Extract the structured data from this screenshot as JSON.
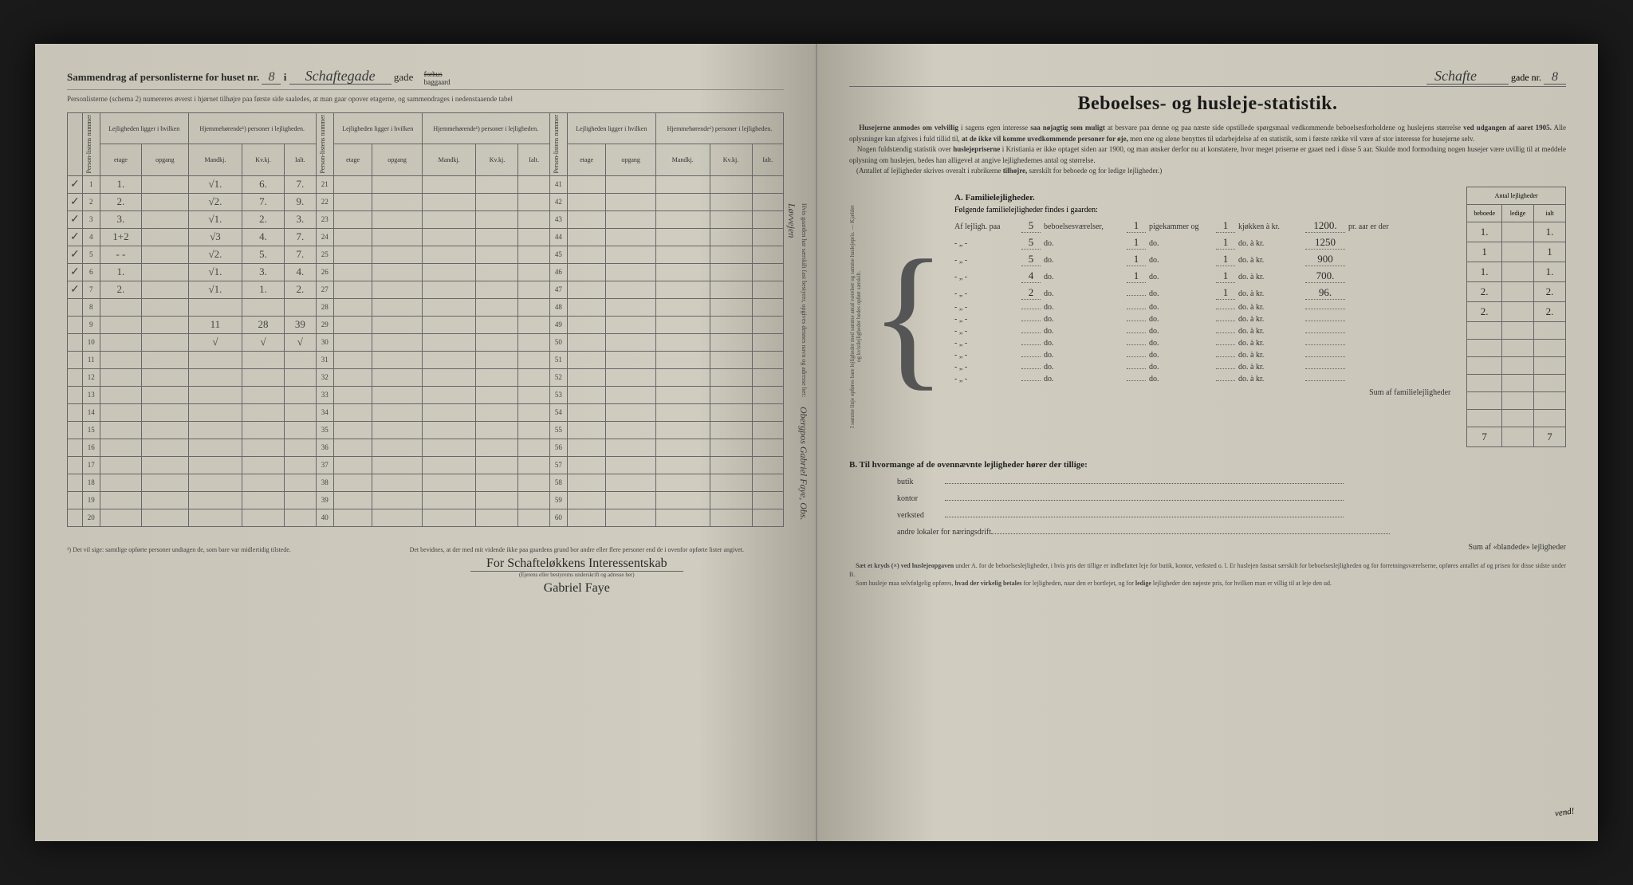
{
  "leftPage": {
    "titlePrefix": "Sammendrag af personlisterne for huset nr.",
    "houseNumber": "8",
    "titleMid": "i",
    "streetName": "Schaftegade",
    "titleSuffix": "gade",
    "forhus": "forhus",
    "baggaard": "baggaard",
    "subtitle": "Personlisterne (schema 2) numereres øverst i hjørnet tilhøjre paa første side saaledes, at man gaar opover etagerne, og sammendrages i nedenstaaende tabel",
    "headers": {
      "personlistens": "Person-listens nummer",
      "lejligheden": "Lejligheden ligger i hvilken",
      "hjemmehorende": "Hjemmehørende¹) personer i lejligheden.",
      "etage": "etage",
      "opgang": "opgang",
      "mandkj": "Mandkj.",
      "kvkj": "Kv.kj.",
      "ialt": "Ialt."
    },
    "rows": [
      {
        "check": "✓",
        "n": "1",
        "etage": "1.",
        "opg": "",
        "m": "√1.",
        "k": "6.",
        "i": "7.",
        "n2": "21",
        "n3": "41"
      },
      {
        "check": "✓",
        "n": "2",
        "etage": "2.",
        "opg": "",
        "m": "√2.",
        "k": "7.",
        "i": "9.",
        "n2": "22",
        "n3": "42"
      },
      {
        "check": "✓",
        "n": "3",
        "etage": "3.",
        "opg": "",
        "m": "√1.",
        "k": "2.",
        "i": "3.",
        "n2": "23",
        "n3": "43"
      },
      {
        "check": "✓",
        "n": "4",
        "etage": "1+2",
        "opg": "",
        "m": "√3",
        "k": "4.",
        "i": "7.",
        "n2": "24",
        "n3": "44"
      },
      {
        "check": "✓",
        "n": "5",
        "etage": "- -",
        "opg": "",
        "m": "√2.",
        "k": "5.",
        "i": "7.",
        "n2": "25",
        "n3": "45"
      },
      {
        "check": "✓",
        "n": "6",
        "etage": "1.",
        "opg": "",
        "m": "√1.",
        "k": "3.",
        "i": "4.",
        "n2": "26",
        "n3": "46"
      },
      {
        "check": "✓",
        "n": "7",
        "etage": "2.",
        "opg": "",
        "m": "√1.",
        "k": "1.",
        "i": "2.",
        "n2": "27",
        "n3": "47"
      },
      {
        "check": "",
        "n": "8",
        "etage": "",
        "opg": "",
        "m": "",
        "k": "",
        "i": "",
        "n2": "28",
        "n3": "48"
      },
      {
        "check": "",
        "n": "9",
        "etage": "",
        "opg": "",
        "m": "11",
        "k": "28",
        "i": "39",
        "n2": "29",
        "n3": "49"
      },
      {
        "check": "",
        "n": "10",
        "etage": "",
        "opg": "",
        "m": "√",
        "k": "√",
        "i": "√",
        "n2": "30",
        "n3": "50"
      },
      {
        "check": "",
        "n": "11",
        "etage": "",
        "opg": "",
        "m": "",
        "k": "",
        "i": "",
        "n2": "31",
        "n3": "51"
      },
      {
        "check": "",
        "n": "12",
        "etage": "",
        "opg": "",
        "m": "",
        "k": "",
        "i": "",
        "n2": "32",
        "n3": "52"
      },
      {
        "check": "",
        "n": "13",
        "etage": "",
        "opg": "",
        "m": "",
        "k": "",
        "i": "",
        "n2": "33",
        "n3": "53"
      },
      {
        "check": "",
        "n": "14",
        "etage": "",
        "opg": "",
        "m": "",
        "k": "",
        "i": "",
        "n2": "34",
        "n3": "54"
      },
      {
        "check": "",
        "n": "15",
        "etage": "",
        "opg": "",
        "m": "",
        "k": "",
        "i": "",
        "n2": "35",
        "n3": "55"
      },
      {
        "check": "",
        "n": "16",
        "etage": "",
        "opg": "",
        "m": "",
        "k": "",
        "i": "",
        "n2": "36",
        "n3": "56"
      },
      {
        "check": "",
        "n": "17",
        "etage": "",
        "opg": "",
        "m": "",
        "k": "",
        "i": "",
        "n2": "37",
        "n3": "57"
      },
      {
        "check": "",
        "n": "18",
        "etage": "",
        "opg": "",
        "m": "",
        "k": "",
        "i": "",
        "n2": "38",
        "n3": "58"
      },
      {
        "check": "",
        "n": "19",
        "etage": "",
        "opg": "",
        "m": "",
        "k": "",
        "i": "",
        "n2": "39",
        "n3": "59"
      },
      {
        "check": "",
        "n": "20",
        "etage": "",
        "opg": "",
        "m": "",
        "k": "",
        "i": "",
        "n2": "40",
        "n3": "60"
      }
    ],
    "footnote": "¹) Det vil sige: samtlige opførte personer undtagen de, som bare var midlertidig tilstede.",
    "attestation": "Det bevidnes, at der med mit vidende ikke paa gaardens grund bor andre eller flere personer end de i ovenfor opførte lister angivet.",
    "signatureLabel": "(Ejerens eller bestyrerns underskrift og adresse her)",
    "signature1": "For Schafteløkkens Interessentskab",
    "signature2": "Gabriel Faye",
    "verticalNote": "Hvis gaarden har særskilt fast bestyrer, opgives dennes navn og adresse her:",
    "verticalHandwritten": "Obergpos Gabriel Faye, Obs. Løvvejen"
  },
  "rightPage": {
    "streetName": "Schafte",
    "gadeLabel": "gade nr.",
    "gadeNr": "8",
    "mainTitle": "Beboelses- og husleje-statistik.",
    "intro1": "Husejerne anmodes om velvillig",
    "intro2": "i sagens egen interesse",
    "intro3": "saa nøjagtig som muligt",
    "intro4": "at besvare paa denne og paa næste side opstillede spørgsmaal vedkommende beboelsesforholdene og huslejens størrelse",
    "intro5": "ved udgangen af aaret 1905.",
    "intro6": "Alle oplysninger kan afgives i fuld tillid til,",
    "intro7": "at de ikke vil komme uvedkommende personer for øje,",
    "intro8": "men ene og alene benyttes til udarbejdelse af en statistik, som i første række vil være af stor interesse for husejerne selv.",
    "intro9": "Nogen fuldstændig statistik over",
    "intro10": "huslejepriserne",
    "intro11": "i Kristiania er ikke optaget siden aar 1900, og man ønsker derfor nu at konstatere, hvor meget priserne er gaaet ned i disse 5 aar. Skulde mod formodning nogen husejer være uvillig til at meddele oplysning om huslejen, bedes han alligevel at angive lejlighedernes antal og størrelse.",
    "intro12": "(Antallet af lejligheder skrives overalt i rubrikerne",
    "intro13": "tilhøjre,",
    "intro14": "særskilt for beboede og for ledige lejligheder.)",
    "sectionA": "A.  Familielejligheder.",
    "sectionALine": "Følgende familielejligheder findes i gaarden:",
    "formRows": [
      {
        "prefix": "Af lejligh. paa",
        "v1": "5",
        "l1": "beboelsesværelser,",
        "v2": "1",
        "l2": "pigekammer og",
        "v3": "1",
        "l3": "kjøkken à kr.",
        "v4": "1200.",
        "suffix": "pr. aar er der",
        "b": "1.",
        "l": "",
        "i": "1."
      },
      {
        "prefix": "-   „   -",
        "v1": "5",
        "l1": "do.",
        "v2": "1",
        "l2": "do.",
        "v3": "1",
        "l3": "do.   à kr.",
        "v4": "1250",
        "suffix": "",
        "b": "1",
        "l": "",
        "i": "1"
      },
      {
        "prefix": "-   „   -",
        "v1": "5",
        "l1": "do.",
        "v2": "1",
        "l2": "do.",
        "v3": "1",
        "l3": "do.   à kr.",
        "v4": "900",
        "suffix": "",
        "b": "1.",
        "l": "",
        "i": "1."
      },
      {
        "prefix": "-   „   -",
        "v1": "4",
        "l1": "do.",
        "v2": "1",
        "l2": "do.",
        "v3": "1",
        "l3": "do.   à kr.",
        "v4": "700.",
        "suffix": "",
        "b": "2.",
        "l": "",
        "i": "2."
      },
      {
        "prefix": "-   „   -",
        "v1": "2",
        "l1": "do.",
        "v2": "",
        "l2": "do.",
        "v3": "1",
        "l3": "do.   à kr.",
        "v4": "96.",
        "suffix": "",
        "b": "2.",
        "l": "",
        "i": "2."
      },
      {
        "prefix": "-   „   -",
        "v1": "",
        "l1": "do.",
        "v2": "",
        "l2": "do.",
        "v3": "",
        "l3": "do.   à kr.",
        "v4": "",
        "suffix": "",
        "b": "",
        "l": "",
        "i": ""
      },
      {
        "prefix": "-   „   -",
        "v1": "",
        "l1": "do.",
        "v2": "",
        "l2": "do.",
        "v3": "",
        "l3": "do.   à kr.",
        "v4": "",
        "suffix": "",
        "b": "",
        "l": "",
        "i": ""
      },
      {
        "prefix": "-   „   -",
        "v1": "",
        "l1": "do.",
        "v2": "",
        "l2": "do.",
        "v3": "",
        "l3": "do.   à kr.",
        "v4": "",
        "suffix": "",
        "b": "",
        "l": "",
        "i": ""
      },
      {
        "prefix": "-   „   -",
        "v1": "",
        "l1": "do.",
        "v2": "",
        "l2": "do.",
        "v3": "",
        "l3": "do.   à kr.",
        "v4": "",
        "suffix": "",
        "b": "",
        "l": "",
        "i": ""
      },
      {
        "prefix": "-   „   -",
        "v1": "",
        "l1": "do.",
        "v2": "",
        "l2": "do.",
        "v3": "",
        "l3": "do.   à kr.",
        "v4": "",
        "suffix": "",
        "b": "",
        "l": "",
        "i": ""
      },
      {
        "prefix": "-   „   -",
        "v1": "",
        "l1": "do.",
        "v2": "",
        "l2": "do.",
        "v3": "",
        "l3": "do.   à kr.",
        "v4": "",
        "suffix": "",
        "b": "",
        "l": "",
        "i": ""
      },
      {
        "prefix": "-   „   -",
        "v1": "",
        "l1": "do.",
        "v2": "",
        "l2": "do.",
        "v3": "",
        "l3": "do.   à kr.",
        "v4": "",
        "suffix": ""
      }
    ],
    "sideHeaders": {
      "title": "Antal lejligheder",
      "beboede": "beboede",
      "ledige": "ledige",
      "ialt": "ialt"
    },
    "sumA": "Sum af familielejligheder",
    "sumAb": "7",
    "sumAi": "7",
    "sectionB": "B.  Til hvormange af de ovennævnte lejligheder hører der tillige:",
    "bItems": [
      "butik",
      "kontor",
      "verksted",
      "andre lokaler for næringsdrift"
    ],
    "sumB": "Sum af «blandede» lejligheder",
    "marginalNote": "I samme linje opføres bare lejligheder med samme antal værelser og samme huslejepris. — Kjælder og kvistlejligheder bedes opført særskilt.",
    "finePrint1": "Sæt et kryds (×) ved huslejeopgaven",
    "finePrint2": "under A. for de beboelseslejligheder, i hvis pris der tillige er indbefattet leje for butik, kontor, verksted o. l. Er huslejen fastsat særskilt for beboelseslejligheden og for forretningsværelserne, opføres antallet af og prisen for disse sidste under B.",
    "finePrint3": "Som husleje maa selvfølgelig opføres,",
    "finePrint4": "hvad der virkelig betales",
    "finePrint5": "for lejligheden, naar den er bortlejet, og for",
    "finePrint6": "ledige",
    "finePrint7": "lejligheder den nøjeste pris, for hvilken man er villig til at leje den ud.",
    "vend": "vend!"
  }
}
